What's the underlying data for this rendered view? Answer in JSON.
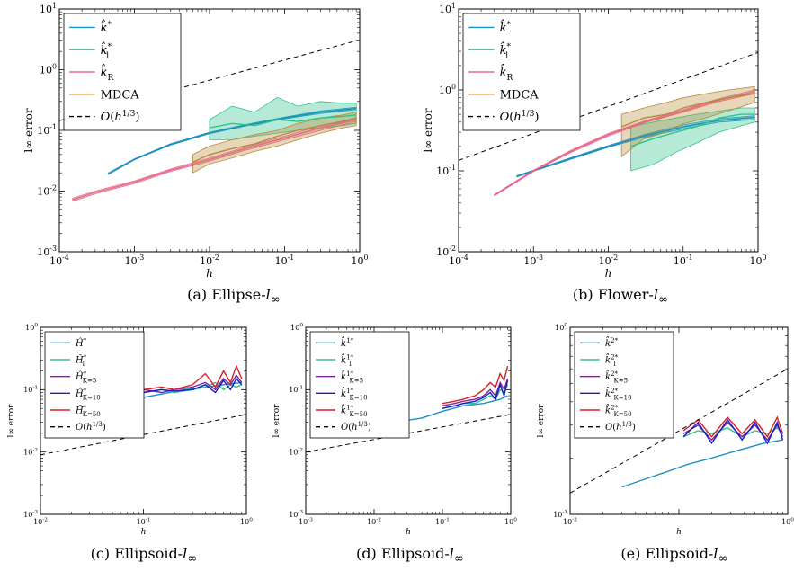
{
  "captions": [
    {
      "label": "(a)",
      "text": "Ellipse-",
      "sub": "l",
      "symbol": "∞"
    },
    {
      "label": "(b)",
      "text": "Flower-",
      "sub": "l",
      "symbol": "∞"
    },
    {
      "label": "(c)",
      "text": "Ellipsoid-",
      "sub": "l",
      "symbol": "∞"
    },
    {
      "label": "(d)",
      "text": "Ellipsoid-",
      "sub": "l",
      "symbol": "∞"
    },
    {
      "label": "(e)",
      "text": "Ellipsoid-",
      "sub": "l",
      "symbol": "∞"
    }
  ],
  "colors": {
    "blue": "#1f8fc4",
    "green": "#2ec48a",
    "pink": "#e8698a",
    "brown": "#b88a3a",
    "purple": "#7a2a8a",
    "navy": "#1a1acc",
    "red": "#d81f2a",
    "dashed": "#000000"
  },
  "chart_data": [
    {
      "type": "line",
      "id": "a",
      "xlabel": "h",
      "ylabel": "l∞ error",
      "xscale": "log",
      "yscale": "log",
      "xlim": [
        0.0001,
        1
      ],
      "ylim": [
        0.001,
        10
      ],
      "xticks": [
        "10^-4",
        "10^-3",
        "10^-2",
        "10^-1",
        "10^0"
      ],
      "yticks": [
        "10^-3",
        "10^-2",
        "10^-1",
        "10^0",
        "10^1"
      ],
      "legend": "top-left",
      "series": [
        {
          "name": "k̂*",
          "color": "#1f8fc4",
          "x": [
            0.00045,
            0.001,
            0.003,
            0.01,
            0.03,
            0.1,
            0.3,
            0.9
          ],
          "y": [
            0.019,
            0.033,
            0.058,
            0.09,
            0.12,
            0.16,
            0.2,
            0.23
          ],
          "lo": [
            0.019,
            0.033,
            0.057,
            0.088,
            0.118,
            0.155,
            0.19,
            0.22
          ],
          "hi": [
            0.02,
            0.034,
            0.06,
            0.093,
            0.125,
            0.165,
            0.21,
            0.24
          ]
        },
        {
          "name": "k̂*_l",
          "color": "#2ec48a",
          "x": [
            0.01,
            0.02,
            0.04,
            0.08,
            0.15,
            0.3,
            0.6,
            0.9
          ],
          "y": [
            0.11,
            0.13,
            0.12,
            0.15,
            0.14,
            0.16,
            0.17,
            0.18
          ],
          "lo": [
            0.07,
            0.07,
            0.08,
            0.09,
            0.1,
            0.11,
            0.12,
            0.13
          ],
          "hi": [
            0.15,
            0.25,
            0.2,
            0.35,
            0.25,
            0.3,
            0.28,
            0.28
          ]
        },
        {
          "name": "k̂_R",
          "color": "#e8698a",
          "x": [
            0.00015,
            0.0003,
            0.001,
            0.003,
            0.01,
            0.03,
            0.1,
            0.3,
            0.9
          ],
          "y": [
            0.0072,
            0.0095,
            0.014,
            0.022,
            0.033,
            0.05,
            0.075,
            0.11,
            0.15
          ],
          "lo": [
            0.0068,
            0.009,
            0.0133,
            0.021,
            0.031,
            0.047,
            0.07,
            0.1,
            0.14
          ],
          "hi": [
            0.0076,
            0.01,
            0.0147,
            0.023,
            0.035,
            0.053,
            0.08,
            0.12,
            0.16
          ]
        },
        {
          "name": "MDCA",
          "color": "#b88a3a",
          "x": [
            0.006,
            0.01,
            0.02,
            0.04,
            0.08,
            0.15,
            0.3,
            0.6,
            0.9
          ],
          "y": [
            0.03,
            0.04,
            0.05,
            0.06,
            0.08,
            0.1,
            0.12,
            0.14,
            0.16
          ],
          "lo": [
            0.02,
            0.028,
            0.035,
            0.045,
            0.055,
            0.07,
            0.09,
            0.11,
            0.12
          ],
          "hi": [
            0.04,
            0.055,
            0.07,
            0.085,
            0.1,
            0.13,
            0.16,
            0.18,
            0.2
          ]
        },
        {
          "name": "O(h^{1/3})",
          "color": "#000000",
          "dashed": true,
          "x": [
            0.0001,
            1
          ],
          "y": [
            0.145,
            3.1
          ]
        }
      ]
    },
    {
      "type": "line",
      "id": "b",
      "xlabel": "h",
      "ylabel": "l∞ error",
      "xscale": "log",
      "yscale": "log",
      "xlim": [
        0.0001,
        1
      ],
      "ylim": [
        0.01,
        10
      ],
      "xticks": [
        "10^-4",
        "10^-3",
        "10^-2",
        "10^-1",
        "10^0"
      ],
      "yticks": [
        "10^-2",
        "10^-1",
        "10^0",
        "10^1"
      ],
      "legend": "top-left",
      "series": [
        {
          "name": "k̂*",
          "color": "#1f8fc4",
          "x": [
            0.0006,
            0.001,
            0.003,
            0.01,
            0.03,
            0.1,
            0.3,
            0.9
          ],
          "y": [
            0.085,
            0.1,
            0.14,
            0.2,
            0.27,
            0.35,
            0.42,
            0.46
          ],
          "lo": [
            0.084,
            0.099,
            0.137,
            0.195,
            0.26,
            0.33,
            0.4,
            0.43
          ],
          "hi": [
            0.087,
            0.102,
            0.143,
            0.205,
            0.28,
            0.37,
            0.44,
            0.48
          ]
        },
        {
          "name": "k̂*_l",
          "color": "#2ec48a",
          "x": [
            0.02,
            0.04,
            0.08,
            0.15,
            0.3,
            0.6,
            0.9
          ],
          "y": [
            0.2,
            0.25,
            0.3,
            0.35,
            0.45,
            0.5,
            0.5
          ],
          "lo": [
            0.1,
            0.12,
            0.17,
            0.22,
            0.3,
            0.36,
            0.4
          ],
          "hi": [
            0.35,
            0.4,
            0.45,
            0.5,
            0.55,
            0.6,
            0.6
          ]
        },
        {
          "name": "k̂_R",
          "color": "#e8698a",
          "x": [
            0.0003,
            0.001,
            0.003,
            0.01,
            0.03,
            0.1,
            0.3,
            0.9
          ],
          "y": [
            0.05,
            0.1,
            0.17,
            0.28,
            0.4,
            0.55,
            0.75,
            0.95
          ],
          "lo": [
            0.049,
            0.098,
            0.165,
            0.27,
            0.39,
            0.53,
            0.72,
            0.9
          ],
          "hi": [
            0.051,
            0.102,
            0.175,
            0.29,
            0.41,
            0.57,
            0.78,
            1.0
          ]
        },
        {
          "name": "MDCA",
          "color": "#b88a3a",
          "x": [
            0.015,
            0.03,
            0.06,
            0.1,
            0.2,
            0.4,
            0.9
          ],
          "y": [
            0.35,
            0.45,
            0.5,
            0.6,
            0.7,
            0.8,
            0.9
          ],
          "lo": [
            0.15,
            0.25,
            0.3,
            0.38,
            0.45,
            0.55,
            0.7
          ],
          "hi": [
            0.5,
            0.6,
            0.7,
            0.8,
            0.9,
            1.0,
            1.1
          ]
        },
        {
          "name": "O(h^{1/3})",
          "color": "#000000",
          "dashed": true,
          "x": [
            0.0001,
            1
          ],
          "y": [
            0.135,
            2.9
          ]
        }
      ]
    },
    {
      "type": "line",
      "id": "c",
      "xlabel": "h",
      "ylabel": "l∞ error",
      "xscale": "log",
      "yscale": "log",
      "xlim": [
        0.01,
        1
      ],
      "ylim": [
        0.001,
        1
      ],
      "xticks": [
        "10^-2",
        "10^-1",
        "10^0"
      ],
      "yticks": [
        "10^-3",
        "10^-2",
        "10^-1",
        "10^0"
      ],
      "legend": "top-left",
      "series": [
        {
          "name": "Ĥ*",
          "color": "#1f8fc4",
          "x": [
            0.04,
            0.06,
            0.1,
            0.15,
            0.25,
            0.4,
            0.6,
            0.9
          ],
          "y": [
            0.055,
            0.065,
            0.075,
            0.085,
            0.1,
            0.11,
            0.12,
            0.13
          ]
        },
        {
          "name": "Ĥ*_l",
          "color": "#2ec48a",
          "x": [
            0.1,
            0.15,
            0.2,
            0.3,
            0.4,
            0.5,
            0.6,
            0.7,
            0.8,
            0.9
          ],
          "y": [
            0.09,
            0.1,
            0.09,
            0.1,
            0.11,
            0.13,
            0.1,
            0.12,
            0.11,
            0.12
          ]
        },
        {
          "name": "Ĥ*_{K=5}",
          "color": "#7a2a8a",
          "x": [
            0.1,
            0.15,
            0.2,
            0.3,
            0.4,
            0.5,
            0.6,
            0.7,
            0.8,
            0.9
          ],
          "y": [
            0.1,
            0.09,
            0.1,
            0.11,
            0.13,
            0.1,
            0.15,
            0.12,
            0.17,
            0.13
          ]
        },
        {
          "name": "Ĥ*_{K=10}",
          "color": "#1a1acc",
          "x": [
            0.1,
            0.15,
            0.2,
            0.3,
            0.4,
            0.5,
            0.6,
            0.7,
            0.8,
            0.9
          ],
          "y": [
            0.09,
            0.1,
            0.095,
            0.1,
            0.12,
            0.09,
            0.14,
            0.1,
            0.15,
            0.12
          ]
        },
        {
          "name": "Ĥ*_{K=50}",
          "color": "#d81f2a",
          "x": [
            0.1,
            0.15,
            0.2,
            0.3,
            0.4,
            0.5,
            0.6,
            0.7,
            0.8,
            0.9
          ],
          "y": [
            0.1,
            0.11,
            0.1,
            0.12,
            0.18,
            0.11,
            0.2,
            0.13,
            0.24,
            0.15
          ]
        },
        {
          "name": "O(h^{1/3})",
          "color": "#000000",
          "dashed": true,
          "x": [
            0.01,
            1
          ],
          "y": [
            0.009,
            0.04
          ]
        }
      ]
    },
    {
      "type": "line",
      "id": "d",
      "xlabel": "h",
      "ylabel": "l∞ error",
      "xscale": "log",
      "yscale": "log",
      "xlim": [
        0.001,
        1
      ],
      "ylim": [
        0.001,
        1
      ],
      "xticks": [
        "10^-3",
        "10^-2",
        "10^-1",
        "10^0"
      ],
      "yticks": [
        "10^-3",
        "10^-2",
        "10^-1",
        "10^0"
      ],
      "legend": "top-left",
      "series": [
        {
          "name": "k̂^{1*}",
          "color": "#1f8fc4",
          "x": [
            0.01,
            0.02,
            0.05,
            0.1,
            0.2,
            0.4,
            0.7,
            0.9
          ],
          "y": [
            0.025,
            0.03,
            0.035,
            0.045,
            0.055,
            0.06,
            0.07,
            0.08
          ]
        },
        {
          "name": "k̂^{1*}_l",
          "color": "#2ec48a",
          "x": [
            0.1,
            0.15,
            0.2,
            0.3,
            0.4,
            0.5,
            0.6,
            0.7,
            0.8,
            0.9
          ],
          "y": [
            0.05,
            0.055,
            0.06,
            0.06,
            0.07,
            0.08,
            0.07,
            0.1,
            0.09,
            0.12
          ]
        },
        {
          "name": "k̂^{1*}_{K=5}",
          "color": "#7a2a8a",
          "x": [
            0.1,
            0.15,
            0.2,
            0.3,
            0.4,
            0.5,
            0.6,
            0.7,
            0.8,
            0.9
          ],
          "y": [
            0.055,
            0.06,
            0.065,
            0.07,
            0.08,
            0.1,
            0.08,
            0.13,
            0.1,
            0.15
          ]
        },
        {
          "name": "k̂^{1*}_{K=10}",
          "color": "#1a1acc",
          "x": [
            0.1,
            0.15,
            0.2,
            0.3,
            0.4,
            0.5,
            0.6,
            0.7,
            0.8,
            0.9
          ],
          "y": [
            0.05,
            0.055,
            0.06,
            0.065,
            0.075,
            0.09,
            0.07,
            0.12,
            0.08,
            0.14
          ]
        },
        {
          "name": "k̂^{1*}_{K=50}",
          "color": "#d81f2a",
          "x": [
            0.1,
            0.15,
            0.2,
            0.3,
            0.4,
            0.5,
            0.6,
            0.7,
            0.8,
            0.9
          ],
          "y": [
            0.06,
            0.065,
            0.07,
            0.08,
            0.1,
            0.13,
            0.11,
            0.18,
            0.14,
            0.24
          ]
        },
        {
          "name": "O(h^{1/3})",
          "color": "#000000",
          "dashed": true,
          "x": [
            0.001,
            1
          ],
          "y": [
            0.01,
            0.04
          ]
        }
      ]
    },
    {
      "type": "line",
      "id": "e",
      "xlabel": "h",
      "ylabel": "l∞ error",
      "xscale": "log",
      "yscale": "log",
      "xlim": [
        0.01,
        1
      ],
      "ylim": [
        0.1,
        1
      ],
      "xticks": [
        "10^-2",
        "10^0"
      ],
      "yticks": [
        "10^-1",
        "10^0"
      ],
      "legend": "top-left",
      "series": [
        {
          "name": "k̂^{2*}",
          "color": "#1f8fc4",
          "x": [
            0.03,
            0.05,
            0.08,
            0.12,
            0.2,
            0.35,
            0.6,
            0.9
          ],
          "y": [
            0.14,
            0.155,
            0.17,
            0.185,
            0.2,
            0.22,
            0.24,
            0.25
          ]
        },
        {
          "name": "k̂^{2*}_l",
          "color": "#2ec48a",
          "x": [
            0.11,
            0.15,
            0.2,
            0.28,
            0.38,
            0.5,
            0.65,
            0.8,
            0.9
          ],
          "y": [
            0.26,
            0.28,
            0.27,
            0.29,
            0.26,
            0.28,
            0.27,
            0.29,
            0.27
          ]
        },
        {
          "name": "k̂^{2*}_{K=5}",
          "color": "#7a2a8a",
          "x": [
            0.11,
            0.15,
            0.2,
            0.28,
            0.38,
            0.5,
            0.65,
            0.8,
            0.9
          ],
          "y": [
            0.27,
            0.3,
            0.25,
            0.31,
            0.26,
            0.3,
            0.25,
            0.3,
            0.26
          ]
        },
        {
          "name": "k̂^{2*}_{K=10}",
          "color": "#1a1acc",
          "x": [
            0.11,
            0.15,
            0.2,
            0.28,
            0.38,
            0.5,
            0.65,
            0.8,
            0.9
          ],
          "y": [
            0.26,
            0.31,
            0.24,
            0.32,
            0.25,
            0.31,
            0.24,
            0.31,
            0.25
          ]
        },
        {
          "name": "k̂^{2*}_{K=50}",
          "color": "#d81f2a",
          "x": [
            0.11,
            0.15,
            0.2,
            0.28,
            0.38,
            0.5,
            0.65,
            0.8,
            0.9
          ],
          "y": [
            0.28,
            0.32,
            0.26,
            0.33,
            0.27,
            0.32,
            0.26,
            0.33,
            0.27
          ]
        },
        {
          "name": "O(h^{1/3})",
          "color": "#000000",
          "dashed": true,
          "x": [
            0.01,
            1
          ],
          "y": [
            0.13,
            0.6
          ]
        }
      ]
    }
  ]
}
